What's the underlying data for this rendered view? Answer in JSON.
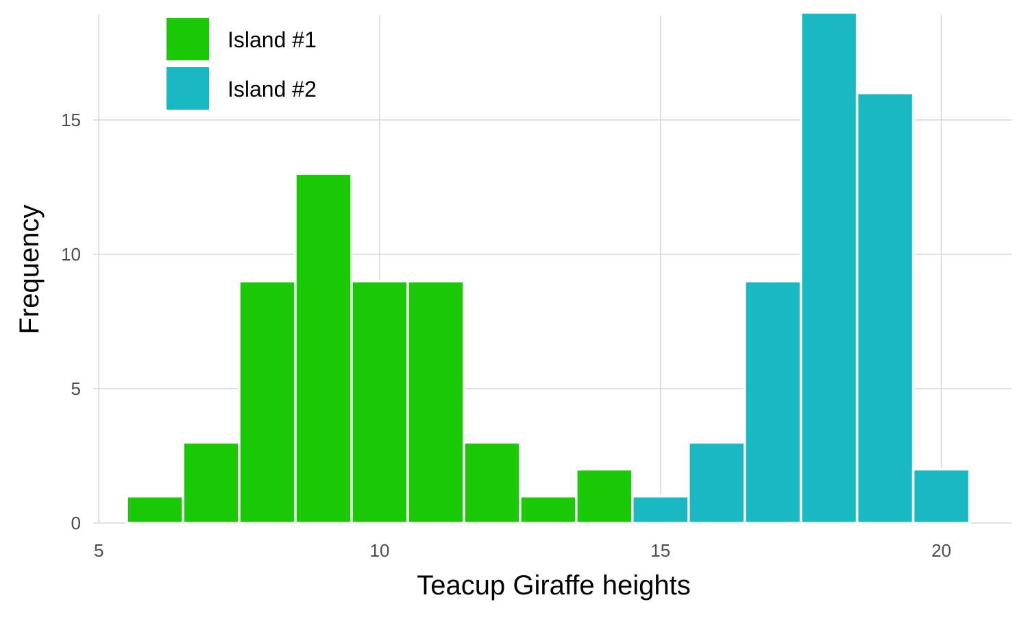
{
  "chart_data": {
    "type": "bar",
    "title": "",
    "xlabel": "Teacup Giraffe heights",
    "ylabel": "Frequency",
    "xlim": [
      4.9,
      21.25
    ],
    "ylim": [
      0,
      18.9
    ],
    "xticks": [
      5,
      10,
      15,
      20
    ],
    "yticks": [
      0,
      5,
      10,
      15
    ],
    "bin_width": 1,
    "grid": true,
    "legend_position": "top-left",
    "series": [
      {
        "name": "Island #1",
        "color": "#1cc906",
        "bins": [
          {
            "x": 6,
            "value": 1
          },
          {
            "x": 7,
            "value": 3
          },
          {
            "x": 8,
            "value": 9
          },
          {
            "x": 9,
            "value": 13
          },
          {
            "x": 10,
            "value": 9
          },
          {
            "x": 11,
            "value": 9
          },
          {
            "x": 12,
            "value": 3
          },
          {
            "x": 13,
            "value": 1
          },
          {
            "x": 14,
            "value": 2
          }
        ]
      },
      {
        "name": "Island #2",
        "color": "#19b9c3",
        "bins": [
          {
            "x": 15,
            "value": 1
          },
          {
            "x": 16,
            "value": 3
          },
          {
            "x": 17,
            "value": 9
          },
          {
            "x": 18,
            "value": 19
          },
          {
            "x": 19,
            "value": 16
          },
          {
            "x": 20,
            "value": 2
          }
        ]
      }
    ]
  }
}
